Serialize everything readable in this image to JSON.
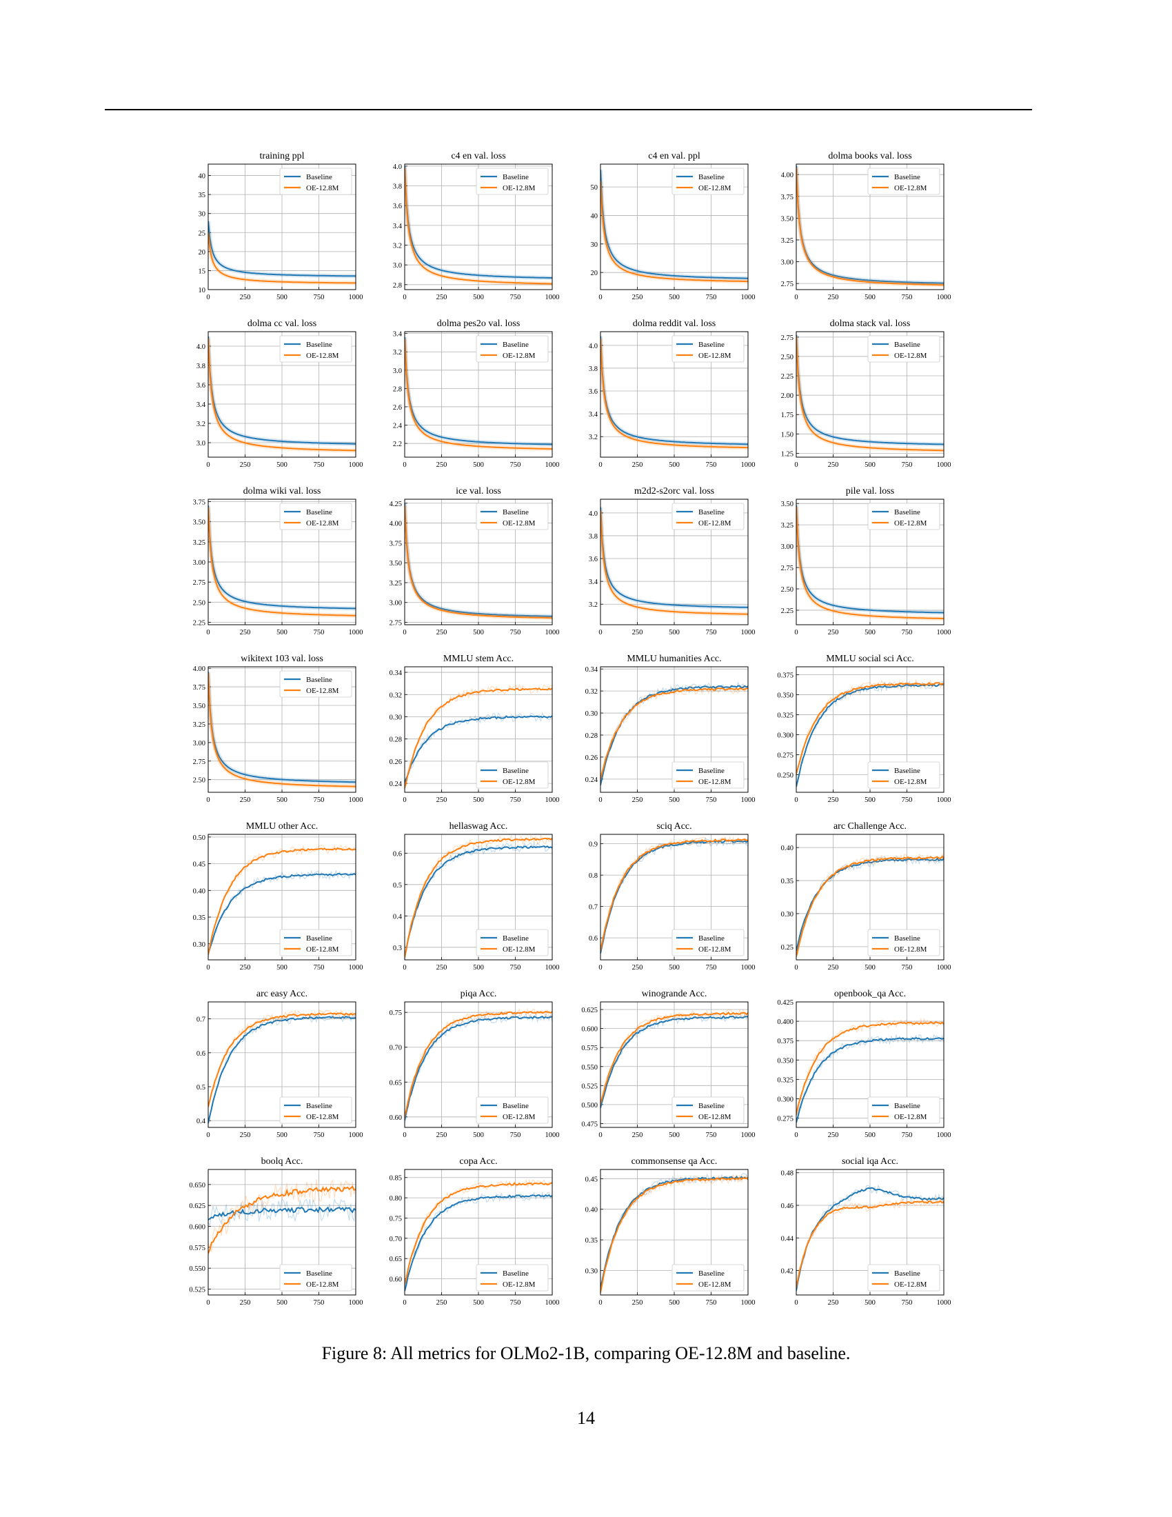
{
  "caption": "Figure 8: All metrics for OLMo2-1B, comparing OE-12.8M and baseline.",
  "page_number": "14",
  "colors": {
    "baseline": "#1f77b4",
    "oe": "#ff7f0e",
    "grid": "#b0b0b0"
  },
  "chart_data": [
    {
      "type": "line",
      "title": "training ppl",
      "x": [
        0,
        1000
      ],
      "xticks": [
        0,
        250,
        500,
        750,
        1000
      ],
      "ylim": [
        10,
        43
      ],
      "yticks": [
        10,
        15,
        20,
        25,
        30,
        35,
        40
      ],
      "yfmt": 0,
      "legend": "top-right",
      "shape": "decay",
      "series": [
        {
          "name": "Baseline",
          "start": 28,
          "end": 13.2
        },
        {
          "name": "OE-12.8M",
          "start": 25,
          "end": 11.4
        }
      ]
    },
    {
      "type": "line",
      "title": "c4 en val. loss",
      "x": [
        0,
        1000
      ],
      "xticks": [
        0,
        250,
        500,
        750,
        1000
      ],
      "ylim": [
        2.75,
        4.02
      ],
      "yticks": [
        2.8,
        3.0,
        3.2,
        3.4,
        3.6,
        3.8,
        4.0
      ],
      "yfmt": 1,
      "legend": "top-right",
      "shape": "decay",
      "series": [
        {
          "name": "Baseline",
          "start": 4.0,
          "end": 2.84
        },
        {
          "name": "OE-12.8M",
          "start": 3.98,
          "end": 2.78
        }
      ]
    },
    {
      "type": "line",
      "title": "c4 en val. ppl",
      "x": [
        0,
        1000
      ],
      "xticks": [
        0,
        250,
        500,
        750,
        1000
      ],
      "ylim": [
        14,
        58
      ],
      "yticks": [
        20,
        30,
        40,
        50
      ],
      "yfmt": 0,
      "legend": "top-right",
      "shape": "decay",
      "series": [
        {
          "name": "Baseline",
          "start": 56,
          "end": 17.0
        },
        {
          "name": "OE-12.8M",
          "start": 52,
          "end": 16.0
        }
      ]
    },
    {
      "type": "line",
      "title": "dolma books val. loss",
      "x": [
        0,
        1000
      ],
      "xticks": [
        0,
        250,
        500,
        750,
        1000
      ],
      "ylim": [
        2.68,
        4.12
      ],
      "yticks": [
        2.75,
        3.0,
        3.25,
        3.5,
        3.75,
        4.0
      ],
      "yfmt": 2,
      "legend": "top-right",
      "shape": "decay",
      "series": [
        {
          "name": "Baseline",
          "start": 4.1,
          "end": 2.72
        },
        {
          "name": "OE-12.8M",
          "start": 4.08,
          "end": 2.7
        }
      ]
    },
    {
      "type": "line",
      "title": "dolma cc val. loss",
      "x": [
        0,
        1000
      ],
      "xticks": [
        0,
        250,
        500,
        750,
        1000
      ],
      "ylim": [
        2.85,
        4.15
      ],
      "yticks": [
        3.0,
        3.2,
        3.4,
        3.6,
        3.8,
        4.0
      ],
      "yfmt": 1,
      "legend": "top-right",
      "shape": "decay",
      "series": [
        {
          "name": "Baseline",
          "start": 4.1,
          "end": 2.96
        },
        {
          "name": "OE-12.8M",
          "start": 4.08,
          "end": 2.89
        }
      ]
    },
    {
      "type": "line",
      "title": "dolma pes2o val. loss",
      "x": [
        0,
        1000
      ],
      "xticks": [
        0,
        250,
        500,
        750,
        1000
      ],
      "ylim": [
        2.05,
        3.42
      ],
      "yticks": [
        2.2,
        2.4,
        2.6,
        2.8,
        3.0,
        3.2,
        3.4
      ],
      "yfmt": 1,
      "legend": "top-right",
      "shape": "decay",
      "series": [
        {
          "name": "Baseline",
          "start": 3.36,
          "end": 2.16
        },
        {
          "name": "OE-12.8M",
          "start": 3.34,
          "end": 2.11
        }
      ]
    },
    {
      "type": "line",
      "title": "dolma reddit val. loss",
      "x": [
        0,
        1000
      ],
      "xticks": [
        0,
        250,
        500,
        750,
        1000
      ],
      "ylim": [
        3.02,
        4.12
      ],
      "yticks": [
        3.2,
        3.4,
        3.6,
        3.8,
        4.0
      ],
      "yfmt": 1,
      "legend": "top-right",
      "shape": "decay",
      "series": [
        {
          "name": "Baseline",
          "start": 4.08,
          "end": 3.11
        },
        {
          "name": "OE-12.8M",
          "start": 4.06,
          "end": 3.08
        }
      ]
    },
    {
      "type": "line",
      "title": "dolma stack val. loss",
      "x": [
        0,
        1000
      ],
      "xticks": [
        0,
        250,
        500,
        750,
        1000
      ],
      "ylim": [
        1.2,
        2.82
      ],
      "yticks": [
        1.25,
        1.5,
        1.75,
        2.0,
        2.25,
        2.5,
        2.75
      ],
      "yfmt": 2,
      "legend": "top-right",
      "shape": "decay",
      "series": [
        {
          "name": "Baseline",
          "start": 2.78,
          "end": 1.33
        },
        {
          "name": "OE-12.8M",
          "start": 2.75,
          "end": 1.25
        }
      ]
    },
    {
      "type": "line",
      "title": "dolma wiki val. loss",
      "x": [
        0,
        1000
      ],
      "xticks": [
        0,
        250,
        500,
        750,
        1000
      ],
      "ylim": [
        2.22,
        3.78
      ],
      "yticks": [
        2.25,
        2.5,
        2.75,
        3.0,
        3.25,
        3.5,
        3.75
      ],
      "yfmt": 2,
      "legend": "top-right",
      "shape": "decay",
      "series": [
        {
          "name": "Baseline",
          "start": 3.7,
          "end": 2.39
        },
        {
          "name": "OE-12.8M",
          "start": 3.68,
          "end": 2.3
        }
      ]
    },
    {
      "type": "line",
      "title": "ice val. loss",
      "x": [
        0,
        1000
      ],
      "xticks": [
        0,
        250,
        500,
        750,
        1000
      ],
      "ylim": [
        2.72,
        4.3
      ],
      "yticks": [
        2.75,
        3.0,
        3.25,
        3.5,
        3.75,
        4.0,
        4.25
      ],
      "yfmt": 2,
      "legend": "top-right",
      "shape": "decay",
      "series": [
        {
          "name": "Baseline",
          "start": 4.25,
          "end": 2.79
        },
        {
          "name": "OE-12.8M",
          "start": 4.22,
          "end": 2.77
        }
      ]
    },
    {
      "type": "line",
      "title": "m2d2-s2orc val. loss",
      "x": [
        0,
        1000
      ],
      "xticks": [
        0,
        250,
        500,
        750,
        1000
      ],
      "ylim": [
        3.02,
        4.12
      ],
      "yticks": [
        3.2,
        3.4,
        3.6,
        3.8,
        4.0
      ],
      "yfmt": 1,
      "legend": "top-right",
      "shape": "decay",
      "series": [
        {
          "name": "Baseline",
          "start": 4.05,
          "end": 3.15
        },
        {
          "name": "OE-12.8M",
          "start": 4.02,
          "end": 3.09
        }
      ]
    },
    {
      "type": "line",
      "title": "pile val. loss",
      "x": [
        0,
        1000
      ],
      "xticks": [
        0,
        250,
        500,
        750,
        1000
      ],
      "ylim": [
        2.08,
        3.55
      ],
      "yticks": [
        2.25,
        2.5,
        2.75,
        3.0,
        3.25,
        3.5
      ],
      "yfmt": 2,
      "legend": "top-right",
      "shape": "decay",
      "series": [
        {
          "name": "Baseline",
          "start": 3.48,
          "end": 2.19
        },
        {
          "name": "OE-12.8M",
          "start": 3.46,
          "end": 2.12
        }
      ]
    },
    {
      "type": "line",
      "title": "wikitext 103 val. loss",
      "x": [
        0,
        1000
      ],
      "xticks": [
        0,
        250,
        500,
        750,
        1000
      ],
      "ylim": [
        2.33,
        4.02
      ],
      "yticks": [
        2.5,
        2.75,
        3.0,
        3.25,
        3.5,
        3.75,
        4.0
      ],
      "yfmt": 2,
      "legend": "top-right",
      "shape": "decay",
      "series": [
        {
          "name": "Baseline",
          "start": 3.95,
          "end": 2.43
        },
        {
          "name": "OE-12.8M",
          "start": 3.93,
          "end": 2.37
        }
      ]
    },
    {
      "type": "line",
      "title": "MMLU stem Acc.",
      "x": [
        0,
        1000
      ],
      "xticks": [
        0,
        250,
        500,
        750,
        1000
      ],
      "ylim": [
        0.232,
        0.345
      ],
      "yticks": [
        0.24,
        0.26,
        0.28,
        0.3,
        0.32,
        0.34
      ],
      "yfmt": 2,
      "legend": "bottom-right",
      "shape": "rise",
      "series": [
        {
          "name": "Baseline",
          "start": 0.24,
          "end": 0.3
        },
        {
          "name": "OE-12.8M",
          "start": 0.235,
          "end": 0.325
        }
      ]
    },
    {
      "type": "line",
      "title": "MMLU humanities Acc.",
      "x": [
        0,
        1000
      ],
      "xticks": [
        0,
        250,
        500,
        750,
        1000
      ],
      "ylim": [
        0.228,
        0.342
      ],
      "yticks": [
        0.24,
        0.26,
        0.28,
        0.3,
        0.32,
        0.34
      ],
      "yfmt": 2,
      "legend": "bottom-right",
      "shape": "rise",
      "series": [
        {
          "name": "Baseline",
          "start": 0.235,
          "end": 0.324
        },
        {
          "name": "OE-12.8M",
          "start": 0.24,
          "end": 0.322
        }
      ]
    },
    {
      "type": "line",
      "title": "MMLU social sci Acc.",
      "x": [
        0,
        1000
      ],
      "xticks": [
        0,
        250,
        500,
        750,
        1000
      ],
      "ylim": [
        0.228,
        0.385
      ],
      "yticks": [
        0.25,
        0.275,
        0.3,
        0.325,
        0.35,
        0.375
      ],
      "yfmt": 3,
      "legend": "bottom-right",
      "shape": "rise",
      "series": [
        {
          "name": "Baseline",
          "start": 0.235,
          "end": 0.362
        },
        {
          "name": "OE-12.8M",
          "start": 0.25,
          "end": 0.364
        }
      ]
    },
    {
      "type": "line",
      "title": "MMLU other Acc.",
      "x": [
        0,
        1000
      ],
      "xticks": [
        0,
        250,
        500,
        750,
        1000
      ],
      "ylim": [
        0.27,
        0.505
      ],
      "yticks": [
        0.3,
        0.35,
        0.4,
        0.45,
        0.5
      ],
      "yfmt": 2,
      "legend": "bottom-right",
      "shape": "rise",
      "series": [
        {
          "name": "Baseline",
          "start": 0.28,
          "end": 0.43
        },
        {
          "name": "OE-12.8M",
          "start": 0.28,
          "end": 0.478
        }
      ]
    },
    {
      "type": "line",
      "title": "hellaswag Acc.",
      "x": [
        0,
        1000
      ],
      "xticks": [
        0,
        250,
        500,
        750,
        1000
      ],
      "ylim": [
        0.26,
        0.66
      ],
      "yticks": [
        0.3,
        0.4,
        0.5,
        0.6
      ],
      "yfmt": 1,
      "legend": "bottom-right",
      "shape": "rise",
      "series": [
        {
          "name": "Baseline",
          "start": 0.27,
          "end": 0.62
        },
        {
          "name": "OE-12.8M",
          "start": 0.27,
          "end": 0.645
        }
      ]
    },
    {
      "type": "line",
      "title": "sciq Acc.",
      "x": [
        0,
        1000
      ],
      "xticks": [
        0,
        250,
        500,
        750,
        1000
      ],
      "ylim": [
        0.53,
        0.93
      ],
      "yticks": [
        0.6,
        0.7,
        0.8,
        0.9
      ],
      "yfmt": 1,
      "legend": "bottom-right",
      "shape": "rise",
      "series": [
        {
          "name": "Baseline",
          "start": 0.55,
          "end": 0.908
        },
        {
          "name": "OE-12.8M",
          "start": 0.56,
          "end": 0.912
        }
      ]
    },
    {
      "type": "line",
      "title": "arc Challenge Acc.",
      "x": [
        0,
        1000
      ],
      "xticks": [
        0,
        250,
        500,
        750,
        1000
      ],
      "ylim": [
        0.23,
        0.42
      ],
      "yticks": [
        0.25,
        0.3,
        0.35,
        0.4
      ],
      "yfmt": 2,
      "legend": "bottom-right",
      "shape": "rise",
      "series": [
        {
          "name": "Baseline",
          "start": 0.245,
          "end": 0.382
        },
        {
          "name": "OE-12.8M",
          "start": 0.235,
          "end": 0.385
        }
      ]
    },
    {
      "type": "line",
      "title": "arc easy Acc.",
      "x": [
        0,
        1000
      ],
      "xticks": [
        0,
        250,
        500,
        750,
        1000
      ],
      "ylim": [
        0.38,
        0.75
      ],
      "yticks": [
        0.4,
        0.5,
        0.6,
        0.7
      ],
      "yfmt": 1,
      "legend": "bottom-right",
      "shape": "rise",
      "series": [
        {
          "name": "Baseline",
          "start": 0.39,
          "end": 0.705
        },
        {
          "name": "OE-12.8M",
          "start": 0.44,
          "end": 0.715
        }
      ]
    },
    {
      "type": "line",
      "title": "piqa Acc.",
      "x": [
        0,
        1000
      ],
      "xticks": [
        0,
        250,
        500,
        750,
        1000
      ],
      "ylim": [
        0.585,
        0.765
      ],
      "yticks": [
        0.6,
        0.65,
        0.7,
        0.75
      ],
      "yfmt": 2,
      "legend": "bottom-right",
      "shape": "rise",
      "series": [
        {
          "name": "Baseline",
          "start": 0.595,
          "end": 0.743
        },
        {
          "name": "OE-12.8M",
          "start": 0.6,
          "end": 0.75
        }
      ]
    },
    {
      "type": "line",
      "title": "winogrande Acc.",
      "x": [
        0,
        1000
      ],
      "xticks": [
        0,
        250,
        500,
        750,
        1000
      ],
      "ylim": [
        0.47,
        0.635
      ],
      "yticks": [
        0.475,
        0.5,
        0.525,
        0.55,
        0.575,
        0.6,
        0.625
      ],
      "yfmt": 3,
      "legend": "bottom-right",
      "shape": "rise",
      "series": [
        {
          "name": "Baseline",
          "start": 0.495,
          "end": 0.615
        },
        {
          "name": "OE-12.8M",
          "start": 0.5,
          "end": 0.62
        }
      ]
    },
    {
      "type": "line",
      "title": "openbook_qa Acc.",
      "x": [
        0,
        1000
      ],
      "xticks": [
        0,
        250,
        500,
        750,
        1000
      ],
      "ylim": [
        0.263,
        0.425
      ],
      "yticks": [
        0.275,
        0.3,
        0.325,
        0.35,
        0.375,
        0.4,
        0.425
      ],
      "yfmt": 3,
      "legend": "bottom-right",
      "shape": "rise",
      "series": [
        {
          "name": "Baseline",
          "start": 0.27,
          "end": 0.378
        },
        {
          "name": "OE-12.8M",
          "start": 0.28,
          "end": 0.398
        }
      ]
    },
    {
      "type": "line",
      "title": "boolq Acc.",
      "x": [
        0,
        1000
      ],
      "xticks": [
        0,
        250,
        500,
        750,
        1000
      ],
      "ylim": [
        0.518,
        0.668
      ],
      "yticks": [
        0.525,
        0.55,
        0.575,
        0.6,
        0.625,
        0.65
      ],
      "yfmt": 3,
      "legend": "bottom-right",
      "shape": "noisy",
      "series": [
        {
          "name": "Baseline",
          "start": 0.61,
          "end": 0.62
        },
        {
          "name": "OE-12.8M",
          "start": 0.57,
          "end": 0.645
        }
      ]
    },
    {
      "type": "line",
      "title": "copa Acc.",
      "x": [
        0,
        1000
      ],
      "xticks": [
        0,
        250,
        500,
        750,
        1000
      ],
      "ylim": [
        0.56,
        0.87
      ],
      "yticks": [
        0.6,
        0.65,
        0.7,
        0.75,
        0.8,
        0.85
      ],
      "yfmt": 2,
      "legend": "bottom-right",
      "shape": "rise",
      "series": [
        {
          "name": "Baseline",
          "start": 0.57,
          "end": 0.805
        },
        {
          "name": "OE-12.8M",
          "start": 0.585,
          "end": 0.835
        }
      ]
    },
    {
      "type": "line",
      "title": "commonsense qa Acc.",
      "x": [
        0,
        1000
      ],
      "xticks": [
        0,
        250,
        500,
        750,
        1000
      ],
      "ylim": [
        0.26,
        0.465
      ],
      "yticks": [
        0.3,
        0.35,
        0.4,
        0.45
      ],
      "yfmt": 2,
      "legend": "bottom-right",
      "shape": "rise",
      "series": [
        {
          "name": "Baseline",
          "start": 0.27,
          "end": 0.452
        },
        {
          "name": "OE-12.8M",
          "start": 0.265,
          "end": 0.45
        }
      ]
    },
    {
      "type": "line",
      "title": "social iqa Acc.",
      "x": [
        0,
        1000
      ],
      "xticks": [
        0,
        250,
        500,
        750,
        1000
      ],
      "ylim": [
        0.405,
        0.482
      ],
      "yticks": [
        0.42,
        0.44,
        0.46,
        0.48
      ],
      "yfmt": 2,
      "legend": "bottom-right",
      "shape": "hump",
      "series": [
        {
          "name": "Baseline",
          "start": 0.408,
          "end": 0.464
        },
        {
          "name": "OE-12.8M",
          "start": 0.41,
          "end": 0.462
        }
      ]
    }
  ]
}
